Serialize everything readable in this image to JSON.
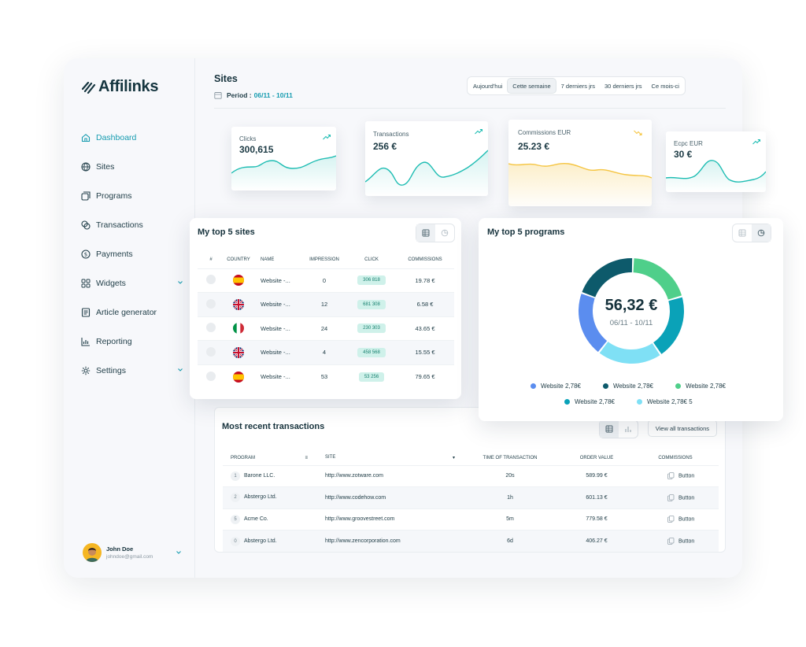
{
  "brand": {
    "name": "Affilinks"
  },
  "sidebar": {
    "items": [
      {
        "label": "Dashboard",
        "icon": "home-icon",
        "active": true
      },
      {
        "label": "Sites",
        "icon": "globe-icon"
      },
      {
        "label": "Programs",
        "icon": "programs-icon"
      },
      {
        "label": "Transactions",
        "icon": "transactions-icon"
      },
      {
        "label": "Payments",
        "icon": "dollar-icon"
      },
      {
        "label": "Widgets",
        "icon": "grid-icon",
        "chevron": true
      },
      {
        "label": "Article generator",
        "icon": "article-icon"
      },
      {
        "label": "Reporting",
        "icon": "reporting-icon"
      },
      {
        "label": "Settings",
        "icon": "gear-icon",
        "chevron": true
      }
    ],
    "user": {
      "name": "John Doe",
      "email": "johndoe@gmail.com"
    }
  },
  "header": {
    "title": "Sites",
    "period_label": "Period :",
    "period_value": "06/11 - 10/11",
    "tabs": [
      "Aujourd'hui",
      "Cette semaine",
      "7 derniers jrs",
      "30 derniers jrs",
      "Ce mois-ci"
    ],
    "selected_tab": "Cette semaine"
  },
  "stats": [
    {
      "label": "Clicks",
      "value": "300,615",
      "color": "#1fbdb3"
    },
    {
      "label": "Transactions",
      "value": "256 €",
      "color": "#1fbdb3"
    },
    {
      "label": "Commissions EUR",
      "value": "25.23 €",
      "color": "#f5c542"
    },
    {
      "label": "Ecpc EUR",
      "value": "30 €",
      "color": "#1fbdb3"
    }
  ],
  "top_sites": {
    "title": "My top 5 sites",
    "columns": [
      "#",
      "COUNTRY",
      "NAME",
      "IMPRESSION",
      "CLICK",
      "COMMISSIONS"
    ],
    "rows": [
      {
        "country": "es",
        "name": "Website -...",
        "impression": "0",
        "click": "306 818",
        "commissions": "19.78 €"
      },
      {
        "country": "gb",
        "name": "Website -...",
        "impression": "12",
        "click": "681 308",
        "commissions": "6.58 €"
      },
      {
        "country": "it",
        "name": "Website -...",
        "impression": "24",
        "click": "230 303",
        "commissions": "43.65 €"
      },
      {
        "country": "gb",
        "name": "Website -...",
        "impression": "4",
        "click": "458 568",
        "commissions": "15.55 €"
      },
      {
        "country": "es",
        "name": "Website -...",
        "impression": "53",
        "click": "53 256",
        "commissions": "79.65 €"
      }
    ]
  },
  "top_programs": {
    "title": "My top 5 programs",
    "total": "56,32 €",
    "period": "06/11 - 10/11",
    "legend": [
      {
        "label": "Website 2,78€",
        "color": "#5b8def"
      },
      {
        "label": "Website 2,78€",
        "color": "#0d5a6b"
      },
      {
        "label": "Website 2,78€",
        "color": "#4fcf8a"
      },
      {
        "label": "Website 2,78€",
        "color": "#0aa2b8"
      },
      {
        "label": "Website 2,78€ 5",
        "color": "#7fe0f5"
      }
    ]
  },
  "transactions": {
    "title": "Most recent transactions",
    "view_all": "View all transactions",
    "columns": [
      "PROGRAM",
      "SITE",
      "TIME OF TRANSACTION",
      "ORDER VALUE",
      "COMMISSIONS"
    ],
    "column_sort_marks": [
      "≡",
      "▾"
    ],
    "rows": [
      {
        "n": "1",
        "program": "Barone LLC.",
        "site": "http://www.zotware.com",
        "time": "20s",
        "order": "589.99 €",
        "commission": "Button"
      },
      {
        "n": "2",
        "program": "Abstergo Ltd.",
        "site": "http://www.codehow.com",
        "time": "1h",
        "order": "601.13 €",
        "commission": "Button"
      },
      {
        "n": "5",
        "program": "Acme Co.",
        "site": "http://www.groovestreet.com",
        "time": "5m",
        "order": "779.58 €",
        "commission": "Button"
      },
      {
        "n": "0",
        "program": "Abstergo Ltd.",
        "site": "http://www.zencorporation.com",
        "time": "6d",
        "order": "406.27 €",
        "commission": "Button"
      }
    ]
  }
}
